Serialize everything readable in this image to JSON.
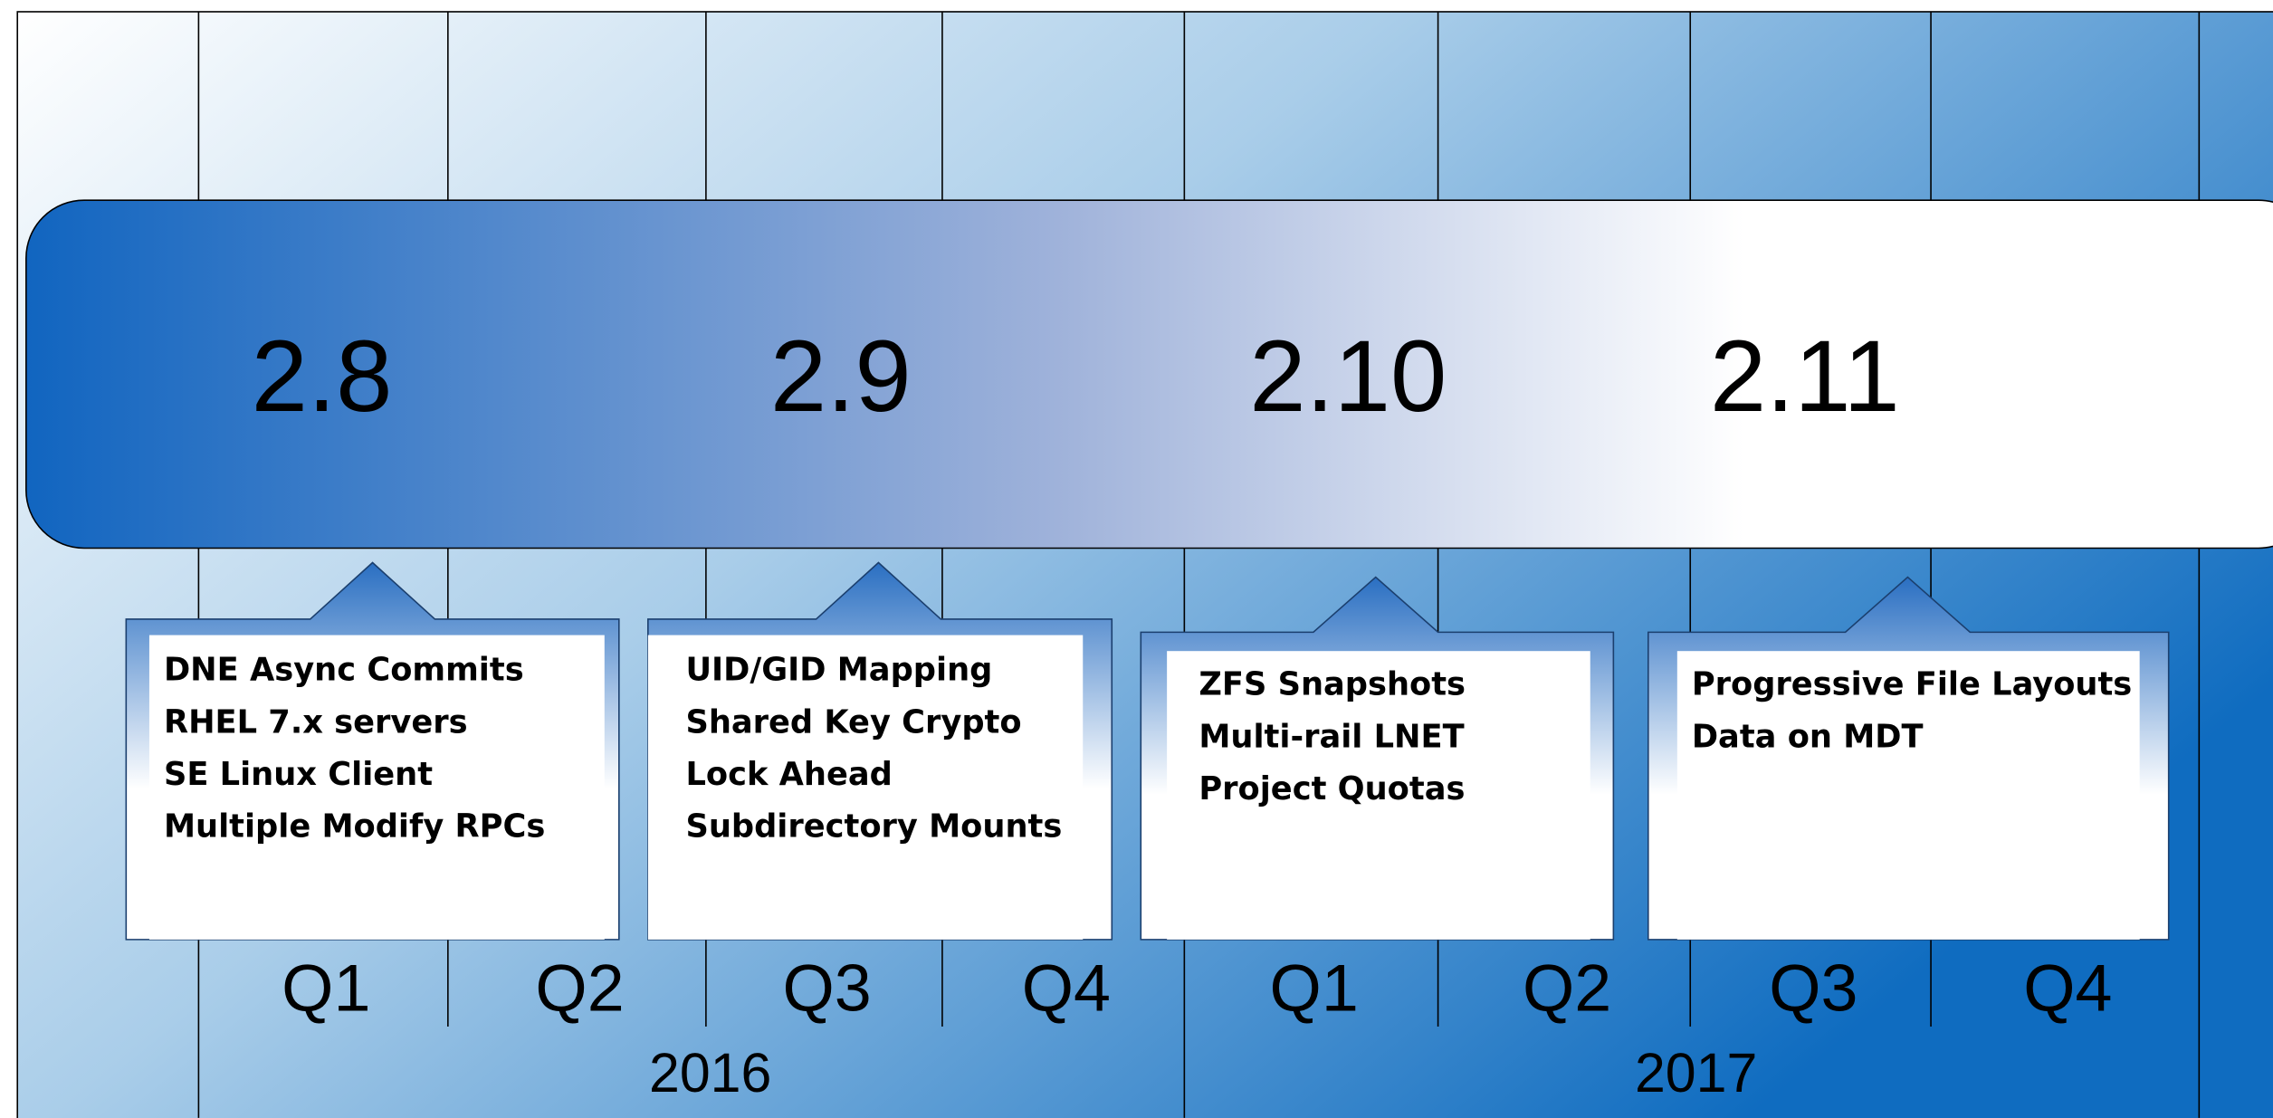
{
  "releases": [
    {
      "version": "2.8",
      "features": [
        "DNE Async Commits",
        "RHEL 7.x servers",
        "SE Linux Client",
        "Multiple Modify RPCs"
      ]
    },
    {
      "version": "2.9",
      "features": [
        "UID/GID Mapping",
        "Shared Key Crypto",
        "Lock Ahead",
        "Subdirectory Mounts"
      ]
    },
    {
      "version": "2.10",
      "features": [
        "ZFS Snapshots",
        "Multi-rail LNET",
        "Project Quotas"
      ]
    },
    {
      "version": "2.11",
      "features": [
        "Progressive File Layouts",
        "Data on MDT"
      ]
    }
  ],
  "quarters": [
    "Q1",
    "Q2",
    "Q3",
    "Q4",
    "Q1",
    "Q2",
    "Q3",
    "Q4"
  ],
  "years": [
    "2016",
    "2017"
  ]
}
